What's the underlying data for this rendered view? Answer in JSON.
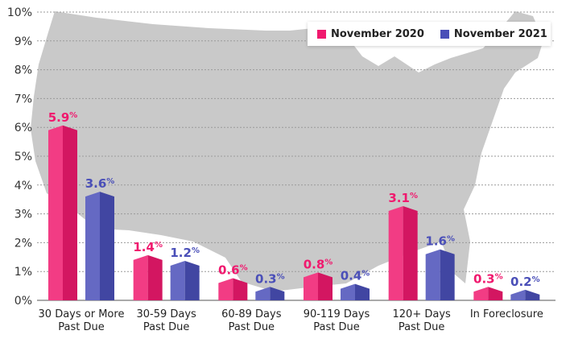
{
  "chart_data": {
    "type": "bar",
    "categories": [
      [
        "30 Days or More",
        "Past Due"
      ],
      [
        "30-59 Days",
        "Past Due"
      ],
      [
        "60-89 Days",
        "Past Due"
      ],
      [
        "90-119 Days",
        "Past Due"
      ],
      [
        "120+ Days",
        "Past Due"
      ],
      [
        "In Foreclosure"
      ]
    ],
    "series": [
      {
        "name": "November 2020",
        "color": "#f0196e",
        "values": [
          5.9,
          1.4,
          0.6,
          0.8,
          3.1,
          0.3
        ]
      },
      {
        "name": "November 2021",
        "color": "#4a4fb8",
        "values": [
          3.6,
          1.2,
          0.3,
          0.4,
          1.6,
          0.2
        ]
      }
    ],
    "ylim": [
      0,
      10
    ],
    "yticks": [
      "0%",
      "1%",
      "2%",
      "3%",
      "4%",
      "5%",
      "6%",
      "7%",
      "8%",
      "9%",
      "10%"
    ],
    "grid": true,
    "legend_position": "top-right",
    "label_suffix": "%"
  }
}
